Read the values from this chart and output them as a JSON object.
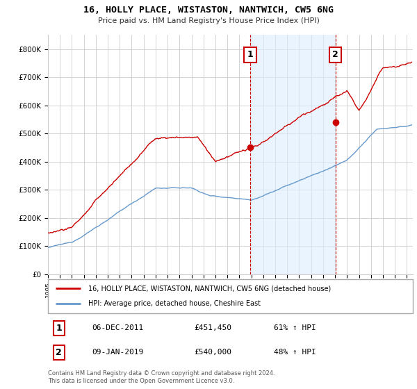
{
  "title": "16, HOLLY PLACE, WISTASTON, NANTWICH, CW5 6NG",
  "subtitle": "Price paid vs. HM Land Registry's House Price Index (HPI)",
  "ylabel_ticks": [
    "£0",
    "£100K",
    "£200K",
    "£300K",
    "£400K",
    "£500K",
    "£600K",
    "£700K",
    "£800K"
  ],
  "ytick_values": [
    0,
    100000,
    200000,
    300000,
    400000,
    500000,
    600000,
    700000,
    800000
  ],
  "ylim": [
    0,
    850000
  ],
  "xlim_start": 1995.0,
  "xlim_end": 2025.5,
  "sale1_year": 2011.92,
  "sale1_price": 451450,
  "sale2_year": 2019.03,
  "sale2_price": 540000,
  "sale1_label": "1",
  "sale2_label": "2",
  "sale1_date": "06-DEC-2011",
  "sale1_amount": "£451,450",
  "sale1_hpi": "61% ↑ HPI",
  "sale2_date": "09-JAN-2019",
  "sale2_amount": "£540,000",
  "sale2_hpi": "48% ↑ HPI",
  "line1_label": "16, HOLLY PLACE, WISTASTON, NANTWICH, CW5 6NG (detached house)",
  "line2_label": "HPI: Average price, detached house, Cheshire East",
  "line1_color": "#cc0000",
  "line2_color": "#6699cc",
  "shade_color": "#ddeeff",
  "shade_alpha": 0.6,
  "vline_color": "#cc0000",
  "background_color": "#ffffff",
  "plot_bg_color": "#ffffff",
  "grid_color": "#cccccc",
  "footer": "Contains HM Land Registry data © Crown copyright and database right 2024.\nThis data is licensed under the Open Government Licence v3.0.",
  "figsize": [
    6.0,
    5.6
  ],
  "dpi": 100
}
